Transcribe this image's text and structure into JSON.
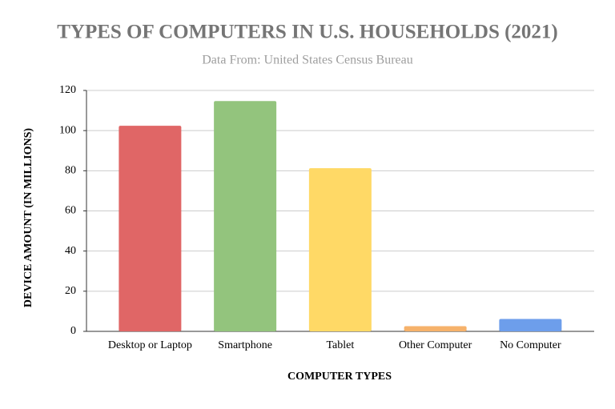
{
  "chart_data": {
    "type": "bar",
    "title": "TYPES OF COMPUTERS IN U.S. HOUSEHOLDS (2021)",
    "subtitle": "Data From: United States Census Bureau",
    "x_label": "COMPUTER TYPES",
    "y_label": "DEVICE AMOUNT (IN MILLIONS)",
    "categories": [
      "Desktop or Laptop",
      "Smartphone",
      "Tablet",
      "Other Computer",
      "No Computer"
    ],
    "values": [
      102.4,
      114.7,
      81.3,
      2.6,
      6.2
    ],
    "colors": [
      "#e06666",
      "#93c47d",
      "#ffd966",
      "#f6b26b",
      "#6d9eeb"
    ],
    "ylim": [
      0,
      120
    ],
    "yticks": [
      0,
      20,
      40,
      60,
      80,
      100,
      120
    ],
    "grid": true
  }
}
